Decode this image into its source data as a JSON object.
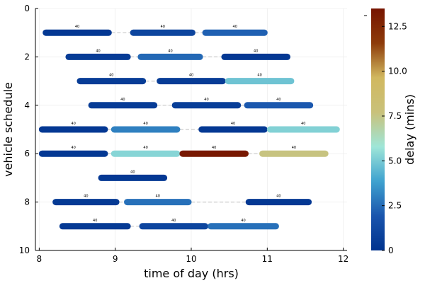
{
  "chart_data": {
    "type": "gantt",
    "xlabel": "time of day (hrs)",
    "ylabel": "vehicle schedule",
    "xlim": [
      7.95,
      12.05
    ],
    "ylim": [
      10,
      0
    ],
    "xticks": [
      8,
      9,
      10,
      11,
      12
    ],
    "xtick_labels": [
      "8",
      "9",
      "10",
      "11",
      "12"
    ],
    "yticks": [
      0,
      2,
      4,
      6,
      8,
      10
    ],
    "ytick_labels": [
      "0",
      "2",
      "4",
      "6",
      "8",
      "10"
    ],
    "grid": true,
    "colorbar": {
      "label": "delay (mins)",
      "range": [
        0,
        13.5
      ],
      "ticks": [
        0,
        2.5,
        5.0,
        7.5,
        10.0,
        12.5
      ],
      "tick_labels": [
        "0",
        "2.5",
        "5.0",
        "7.5",
        "10.0",
        "12.5"
      ],
      "stops": [
        "#00338e",
        "#1a55ad",
        "#3fa2cf",
        "#9fe6d8",
        "#c9c17a",
        "#d1b85f",
        "#8d3b0a",
        "#761400"
      ]
    },
    "vehicles": [
      {
        "y": 1,
        "trips": [
          {
            "start": 8.05,
            "end": 8.95,
            "label": "40",
            "delay": 0.3
          },
          {
            "start": 9.2,
            "end": 10.05,
            "label": "40",
            "delay": 1.0
          },
          {
            "start": 10.15,
            "end": 11.0,
            "label": "40",
            "delay": 2.2
          }
        ]
      },
      {
        "y": 2,
        "trips": [
          {
            "start": 8.35,
            "end": 9.2,
            "label": "40",
            "delay": 0.5
          },
          {
            "start": 9.3,
            "end": 10.15,
            "label": "40",
            "delay": 2.4
          },
          {
            "start": 10.4,
            "end": 11.3,
            "label": "40",
            "delay": 0.3
          }
        ]
      },
      {
        "y": 3,
        "trips": [
          {
            "start": 8.5,
            "end": 9.4,
            "label": "40",
            "delay": 0.5
          },
          {
            "start": 9.55,
            "end": 10.45,
            "label": "40",
            "delay": 0.5
          },
          {
            "start": 10.45,
            "end": 11.35,
            "label": "40",
            "delay": 4.8
          }
        ]
      },
      {
        "y": 4,
        "trips": [
          {
            "start": 8.65,
            "end": 9.55,
            "label": "40",
            "delay": 0.5
          },
          {
            "start": 9.75,
            "end": 10.65,
            "label": "40",
            "delay": 0.6
          },
          {
            "start": 10.7,
            "end": 11.6,
            "label": "40",
            "delay": 2.0
          }
        ]
      },
      {
        "y": 5,
        "trips": [
          {
            "start": 8.0,
            "end": 8.9,
            "label": "40",
            "delay": 0.3
          },
          {
            "start": 8.95,
            "end": 9.85,
            "label": "40",
            "delay": 3.0
          },
          {
            "start": 10.1,
            "end": 11.0,
            "label": "40",
            "delay": 0.3
          },
          {
            "start": 11.0,
            "end": 11.95,
            "label": "40",
            "delay": 5.2
          }
        ]
      },
      {
        "y": 6,
        "trips": [
          {
            "start": 8.0,
            "end": 8.9,
            "label": "40",
            "delay": 0.3
          },
          {
            "start": 8.95,
            "end": 9.85,
            "label": "40",
            "delay": 5.3
          },
          {
            "start": 9.85,
            "end": 10.75,
            "label": "40",
            "delay": 13.3
          },
          {
            "start": 10.9,
            "end": 11.8,
            "label": "40",
            "delay": 7.6
          }
        ]
      },
      {
        "y": 7,
        "trips": [
          {
            "start": 8.78,
            "end": 9.68,
            "label": "40",
            "delay": 0.3
          }
        ]
      },
      {
        "y": 8,
        "trips": [
          {
            "start": 8.18,
            "end": 9.05,
            "label": "40",
            "delay": 0.4
          },
          {
            "start": 9.12,
            "end": 10.0,
            "label": "40",
            "delay": 2.6
          },
          {
            "start": 10.72,
            "end": 11.58,
            "label": "40",
            "delay": 0.3
          }
        ]
      },
      {
        "y": 9,
        "trips": [
          {
            "start": 8.27,
            "end": 9.2,
            "label": "40",
            "delay": 0.4
          },
          {
            "start": 9.32,
            "end": 10.22,
            "label": "40",
            "delay": 1.0
          },
          {
            "start": 10.22,
            "end": 11.15,
            "label": "40",
            "delay": 2.6
          }
        ]
      }
    ]
  }
}
